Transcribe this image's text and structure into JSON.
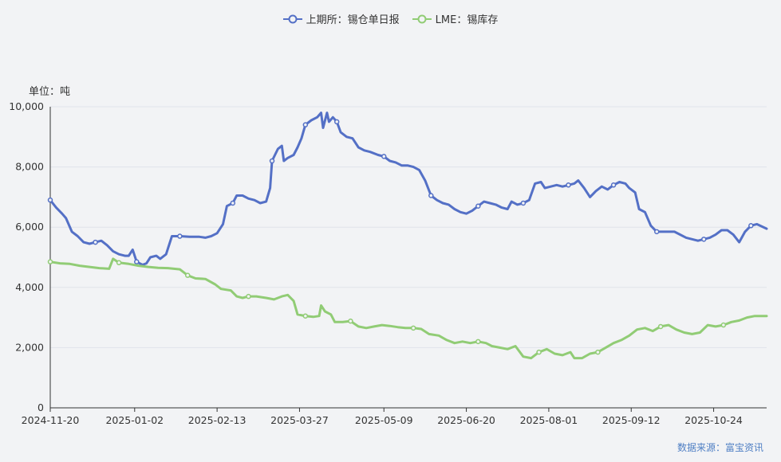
{
  "legend": {
    "series1_label": "上期所：锡仓单日报",
    "series2_label": "LME：锡库存"
  },
  "unit_label": "单位：吨",
  "source_label": "数据来源：富宝资讯",
  "colors": {
    "series1": "#5470c6",
    "series2": "#91cc75",
    "grid": "#e0e3ea",
    "axis": "#333333",
    "background": "#f2f3f5"
  },
  "chart_data": {
    "type": "line",
    "x_axis_type": "date",
    "xlim": [
      "2024-11-20",
      "2025-11-20"
    ],
    "ylim": [
      0,
      10000
    ],
    "y_ticks": [
      0,
      2000,
      4000,
      6000,
      8000,
      10000
    ],
    "y_tick_labels": [
      "0",
      "2,000",
      "4,000",
      "6,000",
      "8,000",
      "10,000"
    ],
    "x_ticks": [
      "2024-11-20",
      "2025-01-02",
      "2025-02-13",
      "2025-03-27",
      "2025-05-09",
      "2025-06-20",
      "2025-08-01",
      "2025-09-12",
      "2025-10-24"
    ],
    "grid": true,
    "legend_position": "top-center",
    "series": [
      {
        "name": "上期所：锡仓单日报",
        "color": "#5470c6",
        "points": [
          [
            "2024-11-20",
            6900
          ],
          [
            "2024-11-23",
            6650
          ],
          [
            "2024-11-26",
            6450
          ],
          [
            "2024-11-28",
            6300
          ],
          [
            "2024-12-01",
            5850
          ],
          [
            "2024-12-04",
            5700
          ],
          [
            "2024-12-07",
            5500
          ],
          [
            "2024-12-10",
            5450
          ],
          [
            "2024-12-13",
            5500
          ],
          [
            "2024-12-16",
            5550
          ],
          [
            "2024-12-19",
            5400
          ],
          [
            "2024-12-22",
            5200
          ],
          [
            "2024-12-25",
            5100
          ],
          [
            "2024-12-28",
            5050
          ],
          [
            "2024-12-30",
            5050
          ],
          [
            "2025-01-01",
            5250
          ],
          [
            "2025-01-03",
            4850
          ],
          [
            "2025-01-06",
            4750
          ],
          [
            "2025-01-08",
            4800
          ],
          [
            "2025-01-10",
            5000
          ],
          [
            "2025-01-13",
            5050
          ],
          [
            "2025-01-15",
            4950
          ],
          [
            "2025-01-18",
            5100
          ],
          [
            "2025-01-21",
            5700
          ],
          [
            "2025-01-25",
            5700
          ],
          [
            "2025-01-30",
            5680
          ],
          [
            "2025-02-04",
            5680
          ],
          [
            "2025-02-07",
            5650
          ],
          [
            "2025-02-10",
            5700
          ],
          [
            "2025-02-13",
            5800
          ],
          [
            "2025-02-16",
            6100
          ],
          [
            "2025-02-18",
            6700
          ],
          [
            "2025-02-21",
            6800
          ],
          [
            "2025-02-23",
            7050
          ],
          [
            "2025-02-26",
            7050
          ],
          [
            "2025-03-01",
            6950
          ],
          [
            "2025-03-04",
            6900
          ],
          [
            "2025-03-07",
            6800
          ],
          [
            "2025-03-10",
            6850
          ],
          [
            "2025-03-12",
            7300
          ],
          [
            "2025-03-13",
            8200
          ],
          [
            "2025-03-16",
            8600
          ],
          [
            "2025-03-18",
            8700
          ],
          [
            "2025-03-19",
            8200
          ],
          [
            "2025-03-21",
            8300
          ],
          [
            "2025-03-24",
            8400
          ],
          [
            "2025-03-26",
            8650
          ],
          [
            "2025-03-28",
            8950
          ],
          [
            "2025-03-30",
            9400
          ],
          [
            "2025-04-02",
            9550
          ],
          [
            "2025-04-05",
            9650
          ],
          [
            "2025-04-07",
            9800
          ],
          [
            "2025-04-08",
            9300
          ],
          [
            "2025-04-10",
            9800
          ],
          [
            "2025-04-11",
            9500
          ],
          [
            "2025-04-13",
            9650
          ],
          [
            "2025-04-15",
            9500
          ],
          [
            "2025-04-17",
            9150
          ],
          [
            "2025-04-20",
            9000
          ],
          [
            "2025-04-23",
            8950
          ],
          [
            "2025-04-26",
            8650
          ],
          [
            "2025-04-29",
            8550
          ],
          [
            "2025-05-02",
            8500
          ],
          [
            "2025-05-06",
            8400
          ],
          [
            "2025-05-09",
            8350
          ],
          [
            "2025-05-12",
            8200
          ],
          [
            "2025-05-15",
            8150
          ],
          [
            "2025-05-18",
            8050
          ],
          [
            "2025-05-21",
            8050
          ],
          [
            "2025-05-24",
            8000
          ],
          [
            "2025-05-27",
            7900
          ],
          [
            "2025-05-30",
            7550
          ],
          [
            "2025-06-02",
            7050
          ],
          [
            "2025-06-05",
            6900
          ],
          [
            "2025-06-08",
            6800
          ],
          [
            "2025-06-11",
            6750
          ],
          [
            "2025-06-14",
            6600
          ],
          [
            "2025-06-17",
            6500
          ],
          [
            "2025-06-20",
            6450
          ],
          [
            "2025-06-23",
            6550
          ],
          [
            "2025-06-26",
            6700
          ],
          [
            "2025-06-29",
            6850
          ],
          [
            "2025-07-02",
            6800
          ],
          [
            "2025-07-05",
            6750
          ],
          [
            "2025-07-08",
            6650
          ],
          [
            "2025-07-11",
            6600
          ],
          [
            "2025-07-13",
            6850
          ],
          [
            "2025-07-16",
            6750
          ],
          [
            "2025-07-19",
            6800
          ],
          [
            "2025-07-22",
            6900
          ],
          [
            "2025-07-25",
            7450
          ],
          [
            "2025-07-28",
            7500
          ],
          [
            "2025-07-30",
            7300
          ],
          [
            "2025-08-02",
            7350
          ],
          [
            "2025-08-05",
            7400
          ],
          [
            "2025-08-08",
            7350
          ],
          [
            "2025-08-11",
            7400
          ],
          [
            "2025-08-14",
            7450
          ],
          [
            "2025-08-16",
            7550
          ],
          [
            "2025-08-19",
            7300
          ],
          [
            "2025-08-22",
            7000
          ],
          [
            "2025-08-25",
            7200
          ],
          [
            "2025-08-28",
            7350
          ],
          [
            "2025-08-31",
            7250
          ],
          [
            "2025-09-03",
            7400
          ],
          [
            "2025-09-06",
            7500
          ],
          [
            "2025-09-09",
            7450
          ],
          [
            "2025-09-11",
            7300
          ],
          [
            "2025-09-14",
            7150
          ],
          [
            "2025-09-16",
            6600
          ],
          [
            "2025-09-19",
            6500
          ],
          [
            "2025-09-22",
            6050
          ],
          [
            "2025-09-25",
            5850
          ],
          [
            "2025-09-28",
            5850
          ],
          [
            "2025-10-01",
            5850
          ],
          [
            "2025-10-04",
            5850
          ],
          [
            "2025-10-07",
            5750
          ],
          [
            "2025-10-10",
            5650
          ],
          [
            "2025-10-13",
            5600
          ],
          [
            "2025-10-16",
            5550
          ],
          [
            "2025-10-19",
            5600
          ],
          [
            "2025-10-22",
            5650
          ],
          [
            "2025-10-25",
            5750
          ],
          [
            "2025-10-28",
            5900
          ],
          [
            "2025-10-31",
            5900
          ],
          [
            "2025-11-03",
            5750
          ],
          [
            "2025-11-06",
            5500
          ],
          [
            "2025-11-09",
            5850
          ],
          [
            "2025-11-12",
            6050
          ],
          [
            "2025-11-15",
            6100
          ],
          [
            "2025-11-20",
            5950
          ]
        ]
      },
      {
        "name": "LME：锡库存",
        "color": "#91cc75",
        "points": [
          [
            "2024-11-20",
            4850
          ],
          [
            "2024-11-25",
            4800
          ],
          [
            "2024-11-30",
            4780
          ],
          [
            "2024-12-05",
            4720
          ],
          [
            "2024-12-10",
            4680
          ],
          [
            "2024-12-15",
            4640
          ],
          [
            "2024-12-20",
            4620
          ],
          [
            "2024-12-22",
            4950
          ],
          [
            "2024-12-25",
            4820
          ],
          [
            "2024-12-30",
            4780
          ],
          [
            "2025-01-04",
            4720
          ],
          [
            "2025-01-09",
            4680
          ],
          [
            "2025-01-14",
            4650
          ],
          [
            "2025-01-19",
            4640
          ],
          [
            "2025-01-22",
            4620
          ],
          [
            "2025-01-25",
            4600
          ],
          [
            "2025-01-29",
            4400
          ],
          [
            "2025-02-02",
            4300
          ],
          [
            "2025-02-07",
            4280
          ],
          [
            "2025-02-12",
            4100
          ],
          [
            "2025-02-15",
            3950
          ],
          [
            "2025-02-20",
            3900
          ],
          [
            "2025-02-23",
            3700
          ],
          [
            "2025-02-26",
            3650
          ],
          [
            "2025-03-01",
            3700
          ],
          [
            "2025-03-05",
            3700
          ],
          [
            "2025-03-10",
            3650
          ],
          [
            "2025-03-14",
            3600
          ],
          [
            "2025-03-18",
            3700
          ],
          [
            "2025-03-21",
            3750
          ],
          [
            "2025-03-24",
            3550
          ],
          [
            "2025-03-26",
            3100
          ],
          [
            "2025-03-30",
            3050
          ],
          [
            "2025-04-03",
            3020
          ],
          [
            "2025-04-06",
            3050
          ],
          [
            "2025-04-07",
            3400
          ],
          [
            "2025-04-09",
            3200
          ],
          [
            "2025-04-12",
            3100
          ],
          [
            "2025-04-14",
            2850
          ],
          [
            "2025-04-18",
            2850
          ],
          [
            "2025-04-22",
            2880
          ],
          [
            "2025-04-26",
            2700
          ],
          [
            "2025-04-30",
            2650
          ],
          [
            "2025-05-04",
            2700
          ],
          [
            "2025-05-08",
            2750
          ],
          [
            "2025-05-12",
            2720
          ],
          [
            "2025-05-16",
            2680
          ],
          [
            "2025-05-20",
            2650
          ],
          [
            "2025-05-24",
            2650
          ],
          [
            "2025-05-28",
            2620
          ],
          [
            "2025-06-01",
            2450
          ],
          [
            "2025-06-06",
            2400
          ],
          [
            "2025-06-10",
            2250
          ],
          [
            "2025-06-14",
            2150
          ],
          [
            "2025-06-18",
            2200
          ],
          [
            "2025-06-22",
            2150
          ],
          [
            "2025-06-26",
            2200
          ],
          [
            "2025-06-30",
            2150
          ],
          [
            "2025-07-03",
            2050
          ],
          [
            "2025-07-07",
            2000
          ],
          [
            "2025-07-11",
            1950
          ],
          [
            "2025-07-15",
            2050
          ],
          [
            "2025-07-19",
            1700
          ],
          [
            "2025-07-23",
            1650
          ],
          [
            "2025-07-27",
            1850
          ],
          [
            "2025-07-31",
            1950
          ],
          [
            "2025-08-04",
            1800
          ],
          [
            "2025-08-08",
            1750
          ],
          [
            "2025-08-12",
            1850
          ],
          [
            "2025-08-14",
            1650
          ],
          [
            "2025-08-18",
            1650
          ],
          [
            "2025-08-22",
            1800
          ],
          [
            "2025-08-26",
            1850
          ],
          [
            "2025-08-30",
            2000
          ],
          [
            "2025-09-03",
            2150
          ],
          [
            "2025-09-07",
            2250
          ],
          [
            "2025-09-11",
            2400
          ],
          [
            "2025-09-15",
            2600
          ],
          [
            "2025-09-19",
            2650
          ],
          [
            "2025-09-23",
            2550
          ],
          [
            "2025-09-27",
            2700
          ],
          [
            "2025-10-01",
            2750
          ],
          [
            "2025-10-05",
            2600
          ],
          [
            "2025-10-09",
            2500
          ],
          [
            "2025-10-13",
            2450
          ],
          [
            "2025-10-17",
            2500
          ],
          [
            "2025-10-21",
            2750
          ],
          [
            "2025-10-25",
            2700
          ],
          [
            "2025-10-29",
            2750
          ],
          [
            "2025-11-02",
            2850
          ],
          [
            "2025-11-06",
            2900
          ],
          [
            "2025-11-10",
            3000
          ],
          [
            "2025-11-14",
            3050
          ],
          [
            "2025-11-20",
            3050
          ]
        ]
      }
    ]
  }
}
